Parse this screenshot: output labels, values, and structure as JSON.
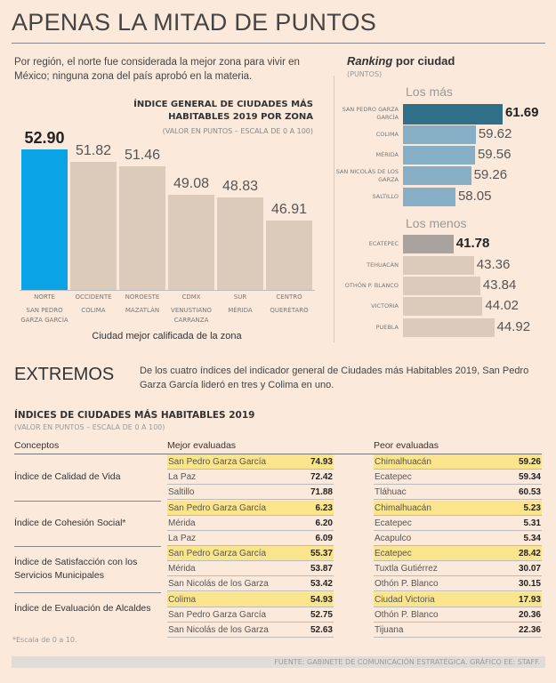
{
  "title": "APENAS LA MITAD DE PUNTOS",
  "intro": "Por región, el norte fue considerada la mejor zona para vivir en México; ninguna zona del país aprobó en la materia.",
  "chart_data": [
    {
      "type": "bar",
      "title": "ÍNDICE GENERAL DE CIUDADES MÁS HABITABLES 2019 POR ZONA",
      "subtitle": "(VALOR EN PUNTOS – ESCALA DE 0 A 100)",
      "xlabel": "Ciudad mejor calificada de la zona",
      "categories": [
        "NORTE",
        "OCCIDENTE",
        "NOROESTE",
        "CDMX",
        "SUR",
        "CENTRO"
      ],
      "cities": [
        "SAN PEDRO GARZA GARCÍA",
        "COLIMA",
        "MAZATLÁN",
        "VENUSTIANO CARRANZA",
        "MÉRIDA",
        "QUERÉTARO"
      ],
      "values": [
        52.9,
        51.82,
        51.46,
        49.08,
        48.83,
        46.91
      ],
      "labels": [
        "52.90",
        "51.82",
        "51.46",
        "49.08",
        "48.83",
        "46.91"
      ],
      "colors": {
        "highlight": "#0aa3e6",
        "default": "#dccbbb"
      }
    },
    {
      "type": "bar",
      "orientation": "horizontal",
      "title": "Ranking por ciudad",
      "title_italic": "Ranking",
      "title_rest": " por ciudad",
      "subtitle": "(PUNTOS)",
      "groups": [
        {
          "name": "Los más",
          "categories": [
            "SAN PEDRO GARZA GARCÍA",
            "COLIMA",
            "MÉRIDA",
            "SAN NICOLÁS DE LOS GARZA",
            "SALTILLO"
          ],
          "values": [
            61.69,
            59.62,
            59.56,
            59.26,
            58.05
          ],
          "labels": [
            "61.69",
            "59.62",
            "59.56",
            "59.26",
            "58.05"
          ],
          "colors": {
            "highlight": "#2f6f88",
            "default": "#86aec4"
          }
        },
        {
          "name": "Los menos",
          "categories": [
            "ECATEPEC",
            "TEHUACÁN",
            "OTHÓN P. BLANCO",
            "VICTORIA",
            "PUEBLA"
          ],
          "values": [
            41.78,
            43.36,
            43.84,
            44.02,
            44.92
          ],
          "labels": [
            "41.78",
            "43.36",
            "43.84",
            "44.02",
            "44.92"
          ],
          "colors": {
            "highlight": "#aaa39d",
            "default": "#dccbbb"
          }
        }
      ]
    }
  ],
  "extremos": {
    "title": "EXTREMOS",
    "description": "De los cuatro índices del indicador general de Ciudades más Habitables 2019, San Pedro Garza García lideró en tres y Colima en uno."
  },
  "table": {
    "title": "ÍNDICES DE CIUDADES MÁS HABITABLES 2019",
    "subtitle": "(VALOR EN PUNTOS – ESCALA DE 0 A 100)",
    "headers": [
      "Conceptos",
      "Mejor evaluadas",
      "Peor evaluadas"
    ],
    "highlight_color": "#fbe58c",
    "groups": [
      {
        "concept": "Índice de Calidad de Vida",
        "best": [
          [
            "San Pedro Garza García",
            "74.93"
          ],
          [
            "La Paz",
            "72.42"
          ],
          [
            "Saltillo",
            "71.88"
          ]
        ],
        "worst": [
          [
            "Chimalhuacán",
            "59.26"
          ],
          [
            "Ecatepec",
            "59.34"
          ],
          [
            "Tláhuac",
            "60.53"
          ]
        ]
      },
      {
        "concept": "Índice de Cohesión Social*",
        "best": [
          [
            "San Pedro Garza García",
            "6.23"
          ],
          [
            "Mérida",
            "6.20"
          ],
          [
            "La Paz",
            "6.09"
          ]
        ],
        "worst": [
          [
            "Chimalhuacán",
            "5.23"
          ],
          [
            "Ecatepec",
            "5.31"
          ],
          [
            "Acapulco",
            "5.34"
          ]
        ]
      },
      {
        "concept": "Índice de Satisfacción con los Servicios Municipales",
        "best": [
          [
            "San Pedro Garza García",
            "55.37"
          ],
          [
            "Mérida",
            "53.87"
          ],
          [
            "San Nicolás de los Garza",
            "53.42"
          ]
        ],
        "worst": [
          [
            "Ecatepec",
            "28.42"
          ],
          [
            "Tuxtla Gutiérrez",
            "30.07"
          ],
          [
            "Othón P. Blanco",
            "30.15"
          ]
        ]
      },
      {
        "concept": "Índice de Evaluación de Alcaldes",
        "best": [
          [
            "Colima",
            "54.93"
          ],
          [
            "San Pedro Garza García",
            "52.75"
          ],
          [
            "San Nicolás de los Garza",
            "52.63"
          ]
        ],
        "worst": [
          [
            "Ciudad Victoria",
            "17.93"
          ],
          [
            "Othón P. Blanco",
            "20.36"
          ],
          [
            "Tijuana",
            "22.36"
          ]
        ]
      }
    ],
    "footnote": "*Escala de 0 a 10."
  },
  "source": "FUENTE: GABINETE DE COMUNICACIÓN ESTRATÉGICA. GRÁFICO EE: STAFF."
}
